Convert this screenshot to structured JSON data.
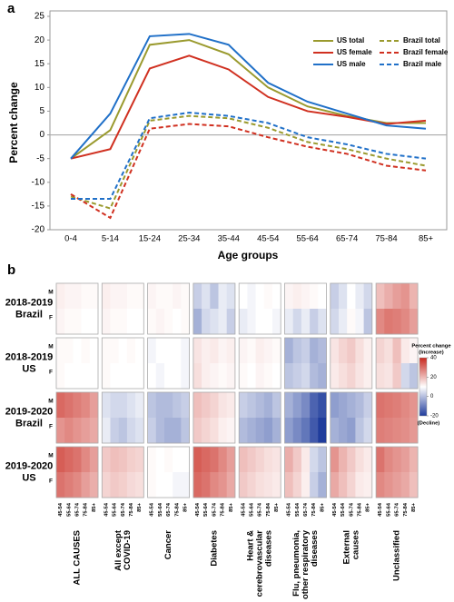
{
  "chart_data": [
    {
      "type": "line",
      "panel_label": "a",
      "ylabel": "Percent change",
      "xlabel": "Age groups",
      "categories": [
        "0-4",
        "5-14",
        "15-24",
        "25-34",
        "35-44",
        "45-54",
        "55-64",
        "65-74",
        "75-84",
        "85+"
      ],
      "ylim": [
        -20,
        25
      ],
      "yticks": [
        -20,
        -15,
        -10,
        -5,
        0,
        5,
        10,
        15,
        20,
        25
      ],
      "series": [
        {
          "name": "US total",
          "color": "#9a9a2e",
          "dash": false,
          "values": [
            -5,
            1,
            19,
            20,
            17,
            10,
            6,
            4,
            2.5,
            2.5
          ]
        },
        {
          "name": "Brazil total",
          "color": "#9a9a2e",
          "dash": true,
          "values": [
            -13,
            -15.5,
            3,
            4,
            3.5,
            1.5,
            -1.5,
            -3,
            -5,
            -6.5
          ]
        },
        {
          "name": "US female",
          "color": "#d03020",
          "dash": false,
          "values": [
            -5,
            -3,
            14,
            16.7,
            13.8,
            8,
            5,
            3.8,
            2.3,
            3
          ]
        },
        {
          "name": "Brazil female",
          "color": "#d03020",
          "dash": true,
          "values": [
            -12.5,
            -17.5,
            1.3,
            2.3,
            1.8,
            -0.5,
            -2.5,
            -4,
            -6.5,
            -7.5
          ]
        },
        {
          "name": "US male",
          "color": "#2070c8",
          "dash": false,
          "values": [
            -5,
            4.5,
            20.8,
            21.3,
            19,
            11,
            7,
            4.5,
            2,
            1.3
          ]
        },
        {
          "name": "Brazil male",
          "color": "#2070c8",
          "dash": true,
          "values": [
            -13.5,
            -13.5,
            3.5,
            4.7,
            4,
            2.5,
            -0.5,
            -2,
            -4,
            -5
          ]
        }
      ]
    },
    {
      "type": "heatmap",
      "panel_label": "b",
      "periods": [
        [
          "2018-2019",
          "Brazil"
        ],
        [
          "2018-2019",
          "US"
        ],
        [
          "2019-2020",
          "Brazil"
        ],
        [
          "2019-2020",
          "US"
        ]
      ],
      "sexes": [
        "M",
        "F"
      ],
      "ages": [
        "45-54",
        "55-64",
        "65-74",
        "75-84",
        "85+"
      ],
      "causes": [
        [
          "ALL CAUSES"
        ],
        [
          "All except",
          "COVID-19"
        ],
        [
          "Cancer"
        ],
        [
          "Diabetes"
        ],
        [
          "Heart &",
          "cerebrovascular",
          "diseases"
        ],
        [
          "Flu, pneumonia,",
          "& other respiratory",
          "diseases"
        ],
        [
          "External",
          "causes"
        ],
        [
          "Unclassified"
        ]
      ],
      "values": [
        [
          [
            [
              3,
              2,
              2,
              1,
              1
            ],
            [
              2,
              1,
              1,
              0,
              0
            ]
          ],
          [
            [
              3,
              2,
              2,
              1,
              1
            ],
            [
              2,
              1,
              1,
              0,
              0
            ]
          ],
          [
            [
              2,
              1,
              1,
              2,
              1
            ],
            [
              1,
              2,
              1,
              0,
              1
            ]
          ],
          [
            [
              -5,
              -3,
              -6,
              -2,
              -3
            ],
            [
              -8,
              -4,
              -3,
              -2,
              -5
            ]
          ],
          [
            [
              0,
              -1,
              0,
              1,
              0
            ],
            [
              -2,
              -1,
              0,
              0,
              -1
            ]
          ],
          [
            [
              2,
              3,
              2,
              1,
              0
            ],
            [
              -2,
              -4,
              -2,
              -5,
              -3
            ]
          ],
          [
            [
              -5,
              -3,
              0,
              -2,
              -4
            ],
            [
              -4,
              -2,
              1,
              -1,
              -6
            ]
          ],
          [
            [
              12,
              15,
              18,
              20,
              14
            ],
            [
              22,
              25,
              24,
              22,
              18
            ]
          ]
        ],
        [
          [
            [
              1,
              1,
              0,
              1,
              0
            ],
            [
              1,
              0,
              0,
              0,
              0
            ]
          ],
          [
            [
              1,
              1,
              0,
              1,
              0
            ],
            [
              1,
              0,
              0,
              0,
              0
            ]
          ],
          [
            [
              -1,
              0,
              0,
              0,
              -1
            ],
            [
              0,
              -1,
              0,
              0,
              -1
            ]
          ],
          [
            [
              5,
              3,
              4,
              2,
              3
            ],
            [
              6,
              3,
              2,
              1,
              2
            ]
          ],
          [
            [
              2,
              1,
              3,
              2,
              1
            ],
            [
              1,
              0,
              2,
              1,
              0
            ]
          ],
          [
            [
              -8,
              -6,
              -5,
              -8,
              -7
            ],
            [
              -6,
              -5,
              -4,
              -7,
              -8
            ]
          ],
          [
            [
              5,
              8,
              10,
              6,
              3
            ],
            [
              4,
              6,
              8,
              5,
              3
            ]
          ],
          [
            [
              8,
              6,
              12,
              4,
              2
            ],
            [
              6,
              5,
              10,
              -4,
              -6
            ]
          ]
        ],
        [
          [
            [
              28,
              26,
              24,
              22,
              18
            ],
            [
              20,
              22,
              20,
              18,
              16
            ]
          ],
          [
            [
              -3,
              -4,
              -4,
              -3,
              -2
            ],
            [
              -2,
              -5,
              -6,
              -4,
              -3
            ]
          ],
          [
            [
              -6,
              -7,
              -7,
              -6,
              -5
            ],
            [
              -5,
              -7,
              -8,
              -8,
              -6
            ]
          ],
          [
            [
              12,
              10,
              8,
              5,
              4
            ],
            [
              10,
              8,
              6,
              3,
              2
            ]
          ],
          [
            [
              -5,
              -6,
              -7,
              -8,
              -6
            ],
            [
              -7,
              -8,
              -9,
              -10,
              -8
            ]
          ],
          [
            [
              -8,
              -10,
              -12,
              -16,
              -18
            ],
            [
              -10,
              -12,
              -14,
              -17,
              -20
            ]
          ],
          [
            [
              -10,
              -9,
              -8,
              -7,
              -5
            ],
            [
              -8,
              -9,
              -10,
              -6,
              -4
            ]
          ],
          [
            [
              26,
              25,
              24,
              22,
              20
            ],
            [
              24,
              23,
              22,
              21,
              19
            ]
          ]
        ],
        [
          [
            [
              30,
              28,
              26,
              22,
              18
            ],
            [
              26,
              24,
              22,
              18,
              15
            ]
          ],
          [
            [
              10,
              12,
              11,
              9,
              8
            ],
            [
              8,
              10,
              9,
              7,
              6
            ]
          ],
          [
            [
              1,
              0,
              1,
              0,
              0
            ],
            [
              1,
              0,
              0,
              -1,
              -1
            ]
          ],
          [
            [
              30,
              28,
              26,
              22,
              18
            ],
            [
              28,
              26,
              22,
              20,
              16
            ]
          ],
          [
            [
              12,
              10,
              8,
              6,
              5
            ],
            [
              10,
              8,
              6,
              5,
              4
            ]
          ],
          [
            [
              15,
              10,
              4,
              -4,
              -6
            ],
            [
              12,
              8,
              3,
              -5,
              -8
            ]
          ],
          [
            [
              20,
              14,
              10,
              6,
              4
            ],
            [
              16,
              12,
              8,
              4,
              3
            ]
          ],
          [
            [
              26,
              22,
              20,
              18,
              14
            ],
            [
              22,
              20,
              18,
              16,
              12
            ]
          ]
        ]
      ],
      "colorbar": {
        "title": "Percent change",
        "high_label": "(Increase)",
        "low_label": "(Decline)",
        "lim": [
          -20,
          40
        ],
        "ticks": [
          -20,
          0,
          20,
          40
        ],
        "colors": [
          "#1f3c9c",
          "#ffffff",
          "#c8281e"
        ]
      }
    }
  ]
}
